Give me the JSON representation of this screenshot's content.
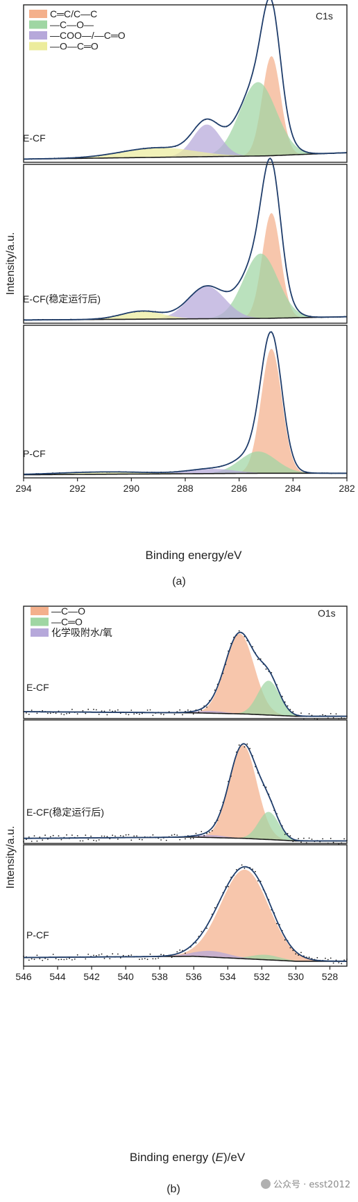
{
  "chart_data": [
    {
      "type": "line",
      "subplot_label": "(a)",
      "element_label": "C1s",
      "xlabel": "Binding energy/eV",
      "ylabel": "Intensity/a.u.",
      "xlim": [
        294,
        282
      ],
      "x_ticks": [
        "294",
        "292",
        "290",
        "288",
        "286",
        "284",
        "282"
      ],
      "legend": [
        {
          "name": "C═C/C—C",
          "color": "#f4b08c"
        },
        {
          "name": "—C—O—",
          "color": "#9fd6a3"
        },
        {
          "name": "—COO—/—C═O",
          "color": "#b6a8da"
        },
        {
          "name": "—O—C═O",
          "color": "#ecec9c"
        }
      ],
      "colors": {
        "envelope": "#1f3d6b",
        "raw": "#1a1a1a",
        "baseline": "#1a1a1a"
      },
      "panels": [
        {
          "name": "E-CF",
          "baseline": [
            [
              294,
              0.02
            ],
            [
              285,
              0.04
            ],
            [
              282,
              0.06
            ]
          ],
          "components": [
            {
              "name": "C═C/C—C",
              "center": 284.8,
              "height": 0.62,
              "fwhm": 0.8
            },
            {
              "name": "—C—O—",
              "center": 285.3,
              "height": 0.46,
              "fwhm": 1.6
            },
            {
              "name": "—COO—/—C═O",
              "center": 287.2,
              "height": 0.2,
              "fwhm": 1.2
            },
            {
              "name": "—O—C═O",
              "center": 289.0,
              "height": 0.06,
              "fwhm": 3.2
            }
          ]
        },
        {
          "name": "E-CF(稳定运行后)",
          "baseline": [
            [
              294,
              0.02
            ],
            [
              285,
              0.03
            ],
            [
              282,
              0.04
            ]
          ],
          "components": [
            {
              "name": "C═C/C—C",
              "center": 284.8,
              "height": 0.65,
              "fwhm": 0.8
            },
            {
              "name": "—C—O—",
              "center": 285.2,
              "height": 0.4,
              "fwhm": 1.5
            },
            {
              "name": "—COO—/—C═O",
              "center": 287.2,
              "height": 0.2,
              "fwhm": 1.6
            },
            {
              "name": "—O—C═O",
              "center": 289.6,
              "height": 0.05,
              "fwhm": 1.8
            }
          ]
        },
        {
          "name": "P-CF",
          "baseline": [
            [
              294,
              0.02
            ],
            [
              285,
              0.03
            ],
            [
              282,
              0.03
            ]
          ],
          "components": [
            {
              "name": "C═C/C—C",
              "center": 284.8,
              "height": 0.8,
              "fwhm": 0.9
            },
            {
              "name": "—C—O—",
              "center": 285.3,
              "height": 0.14,
              "fwhm": 1.6
            },
            {
              "name": "—COO—/—C═O",
              "center": 287.0,
              "height": 0.03,
              "fwhm": 2.0
            },
            {
              "name": "—O—C═O",
              "center": 291.0,
              "height": 0.015,
              "fwhm": 4.0
            }
          ]
        }
      ]
    },
    {
      "type": "line",
      "subplot_label": "(b)",
      "element_label": "O1s",
      "xlabel": "Binding energy (E)/eV",
      "xlabel_parts": [
        "Binding energy (",
        "E",
        ")/eV"
      ],
      "ylabel": "Intensity/a.u.",
      "xlim": [
        546,
        527
      ],
      "x_ticks": [
        "546",
        "544",
        "542",
        "540",
        "538",
        "536",
        "534",
        "532",
        "530",
        "528"
      ],
      "legend": [
        {
          "name": "—C—O",
          "color": "#f4b08c"
        },
        {
          "name": "—C═O",
          "color": "#9fd6a3"
        },
        {
          "name": "化学吸附水/氧",
          "color": "#b6a8da"
        }
      ],
      "colors": {
        "envelope": "#1f3d6b",
        "raw": "#1a1a1a",
        "baseline": "#1a1a1a"
      },
      "panels": [
        {
          "name": "E-CF",
          "baseline": [
            [
              546,
              0.06
            ],
            [
              536,
              0.05
            ],
            [
              533,
              0.04
            ],
            [
              530,
              0.02
            ],
            [
              527,
              0.02
            ]
          ],
          "components": [
            {
              "name": "—C—O",
              "center": 533.3,
              "height": 0.7,
              "fwhm": 2.0
            },
            {
              "name": "—C═O",
              "center": 531.6,
              "height": 0.3,
              "fwhm": 1.5
            },
            {
              "name": "化学吸附水/氧",
              "center": 535.0,
              "height": 0.02,
              "fwhm": 2.0
            }
          ]
        },
        {
          "name": "E-CF(稳定运行后)",
          "baseline": [
            [
              546,
              0.04
            ],
            [
              536,
              0.05
            ],
            [
              533,
              0.04
            ],
            [
              530,
              0.02
            ],
            [
              527,
              0.02
            ]
          ],
          "components": [
            {
              "name": "—C—O",
              "center": 533.1,
              "height": 0.74,
              "fwhm": 1.9
            },
            {
              "name": "—C═O",
              "center": 531.6,
              "height": 0.22,
              "fwhm": 1.4
            },
            {
              "name": "化学吸附水/氧",
              "center": 535.0,
              "height": 0.02,
              "fwhm": 2.0
            }
          ]
        },
        {
          "name": "P-CF",
          "baseline": [
            [
              546,
              0.07
            ],
            [
              536,
              0.08
            ],
            [
              533,
              0.06
            ],
            [
              530,
              0.04
            ],
            [
              527,
              0.04
            ]
          ],
          "components": [
            {
              "name": "—C—O",
              "center": 533.0,
              "height": 0.72,
              "fwhm": 3.3
            },
            {
              "name": "—C═O",
              "center": 531.8,
              "height": 0.04,
              "fwhm": 2.0
            },
            {
              "name": "化学吸附水/氧",
              "center": 535.0,
              "height": 0.05,
              "fwhm": 2.5
            }
          ]
        }
      ]
    }
  ],
  "watermark": "公众号 · esst2012"
}
